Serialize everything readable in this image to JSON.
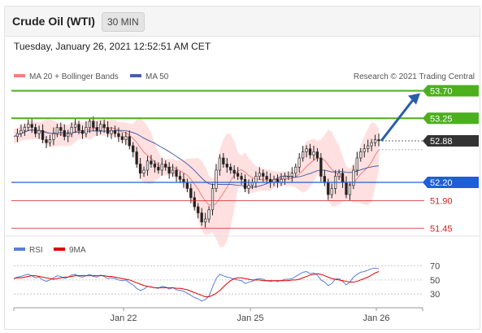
{
  "header": {
    "title": "Crude Oil (WTI)",
    "interval": "30 MIN",
    "timestamp": "Tuesday, January 26, 2021 12:52:51 AM CET"
  },
  "legend": {
    "ma20_bb": "MA 20 + Bollinger Bands",
    "ma50": "MA 50",
    "credit": "Research © 2021 Trading Central",
    "rsi": "RSI",
    "rsi_ma": "9MA"
  },
  "colors": {
    "ma20": "#f08080",
    "bands": "#ffd6d6",
    "ma50": "#4a5fa8",
    "resistance": "#4caf1e",
    "pivot": "#1f5fd6",
    "support": "#d62020",
    "price_label": "#333333",
    "arrow": "#2a5ea8",
    "rsi": "#5a7fd8",
    "rsi_ma": "#e00000",
    "bull_candle": "#e6e6e6",
    "bear_candle": "#222222"
  },
  "chart_data": [
    {
      "type": "candlestick",
      "title": "Crude Oil (WTI)",
      "interval": "30 MIN",
      "x_ticks": [
        "Jan 22",
        "Jan 25",
        "Jan 26"
      ],
      "ylim": [
        51.4,
        53.8
      ],
      "levels": [
        {
          "value": 53.7,
          "label": "53.70",
          "kind": "resistance"
        },
        {
          "value": 53.25,
          "label": "53.25",
          "kind": "resistance"
        },
        {
          "value": 52.88,
          "label": "52.88",
          "kind": "last"
        },
        {
          "value": 52.2,
          "label": "52.20",
          "kind": "pivot"
        },
        {
          "value": 51.9,
          "label": "51.90",
          "kind": "support"
        },
        {
          "value": 51.45,
          "label": "51.45",
          "kind": "support"
        }
      ],
      "price_path": [
        52.95,
        53.0,
        53.05,
        53.1,
        53.15,
        53.1,
        53.0,
        53.05,
        52.9,
        52.85,
        52.9,
        53.0,
        53.1,
        53.05,
        52.95,
        53.0,
        53.1,
        53.15,
        53.05,
        53.0,
        53.1,
        53.2,
        53.1,
        53.05,
        53.15,
        53.1,
        53.0,
        53.05,
        53.0,
        52.95,
        52.9,
        52.95,
        52.8,
        52.7,
        52.5,
        52.35,
        52.4,
        52.55,
        52.5,
        52.45,
        52.4,
        52.5,
        52.45,
        52.35,
        52.4,
        52.3,
        52.25,
        52.2,
        52.1,
        51.95,
        51.8,
        51.7,
        51.55,
        51.6,
        51.75,
        52.1,
        52.4,
        52.6,
        52.5,
        52.45,
        52.4,
        52.35,
        52.3,
        52.25,
        52.1,
        52.15,
        52.2,
        52.3,
        52.35,
        52.3,
        52.25,
        52.2,
        52.25,
        52.2,
        52.25,
        52.3,
        52.3,
        52.35,
        52.45,
        52.6,
        52.7,
        52.75,
        52.65,
        52.7,
        52.6,
        52.3,
        52.2,
        52.0,
        52.1,
        52.3,
        52.35,
        52.2,
        52.0,
        52.15,
        52.4,
        52.6,
        52.7,
        52.75,
        52.8,
        52.85,
        52.9,
        52.88
      ],
      "projection": {
        "from": 52.88,
        "to": 53.7
      }
    },
    {
      "type": "line",
      "title": "RSI",
      "series": [
        {
          "name": "RSI"
        },
        {
          "name": "9MA"
        }
      ],
      "y_ticks": [
        70,
        50,
        30
      ],
      "ylim": [
        15,
        80
      ],
      "rsi": [
        52,
        54,
        55,
        57,
        58,
        56,
        53,
        54,
        50,
        48,
        50,
        53,
        56,
        55,
        52,
        54,
        57,
        58,
        55,
        54,
        56,
        58,
        55,
        54,
        57,
        55,
        52,
        53,
        52,
        50,
        49,
        50,
        46,
        43,
        38,
        35,
        37,
        41,
        40,
        39,
        38,
        41,
        40,
        37,
        39,
        36,
        35,
        34,
        31,
        28,
        25,
        23,
        20,
        22,
        27,
        40,
        52,
        58,
        56,
        54,
        53,
        51,
        50,
        49,
        45,
        47,
        48,
        51,
        52,
        51,
        49,
        48,
        49,
        48,
        49,
        51,
        51,
        52,
        55,
        58,
        61,
        62,
        59,
        60,
        57,
        50,
        47,
        42,
        45,
        51,
        52,
        48,
        43,
        47,
        54,
        58,
        61,
        62,
        64,
        66,
        67,
        66
      ],
      "rsi_ma": [
        52,
        53,
        53,
        54,
        55,
        56,
        56,
        55,
        54,
        53,
        52,
        51,
        52,
        53,
        54,
        54,
        55,
        56,
        56,
        56,
        56,
        56,
        56,
        56,
        56,
        56,
        55,
        55,
        54,
        53,
        52,
        51,
        50,
        48,
        46,
        44,
        42,
        41,
        40,
        39,
        39,
        39,
        39,
        39,
        39,
        38,
        38,
        37,
        36,
        34,
        32,
        30,
        28,
        26,
        26,
        28,
        31,
        35,
        40,
        45,
        49,
        52,
        53,
        53,
        52,
        51,
        50,
        50,
        50,
        49,
        49,
        49,
        49,
        49,
        49,
        49,
        49,
        50,
        50,
        51,
        53,
        55,
        57,
        58,
        59,
        58,
        56,
        54,
        52,
        51,
        50,
        49,
        48,
        47,
        47,
        48,
        50,
        52,
        54,
        57,
        60,
        62
      ]
    }
  ]
}
